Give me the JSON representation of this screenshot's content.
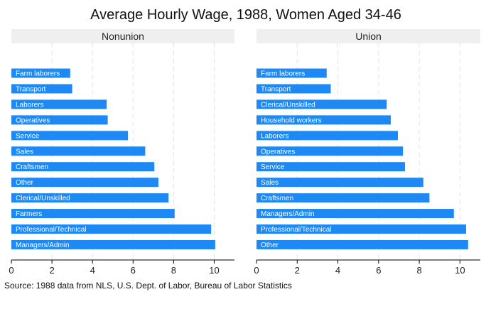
{
  "chart_data": {
    "type": "bar",
    "orientation": "horizontal",
    "title": "Average Hourly Wage, 1988, Women Aged 34-46",
    "note": "Source: 1988 data from NLS, U.S. Dept. of Labor, Bureau of Labor Statistics",
    "bar_color": "#1e88f5",
    "strip_color": "#efefef",
    "xlim": [
      0,
      11
    ],
    "xticks": [
      0,
      2,
      4,
      6,
      8,
      10
    ],
    "grid": true,
    "panels": [
      {
        "label": "Nonunion",
        "categories": [
          "Farm laborers",
          "Transport",
          "Laborers",
          "Operatives",
          "Service",
          "Sales",
          "Craftsmen",
          "Other",
          "Clerical/Unskilled",
          "Farmers",
          "Professional/Technical",
          "Managers/Admin"
        ],
        "values": [
          2.9,
          3.0,
          4.7,
          4.75,
          5.75,
          6.6,
          7.05,
          7.25,
          7.75,
          8.05,
          9.85,
          10.05
        ]
      },
      {
        "label": "Union",
        "categories": [
          "Farm laborers",
          "Transport",
          "Clerical/Unskilled",
          "Household workers",
          "Laborers",
          "Operatives",
          "Service",
          "Sales",
          "Craftsmen",
          "Managers/Admin",
          "Professional/Technical",
          "Other"
        ],
        "values": [
          3.45,
          3.65,
          6.4,
          6.6,
          6.95,
          7.2,
          7.3,
          8.2,
          8.5,
          9.7,
          10.3,
          10.4
        ]
      }
    ]
  }
}
